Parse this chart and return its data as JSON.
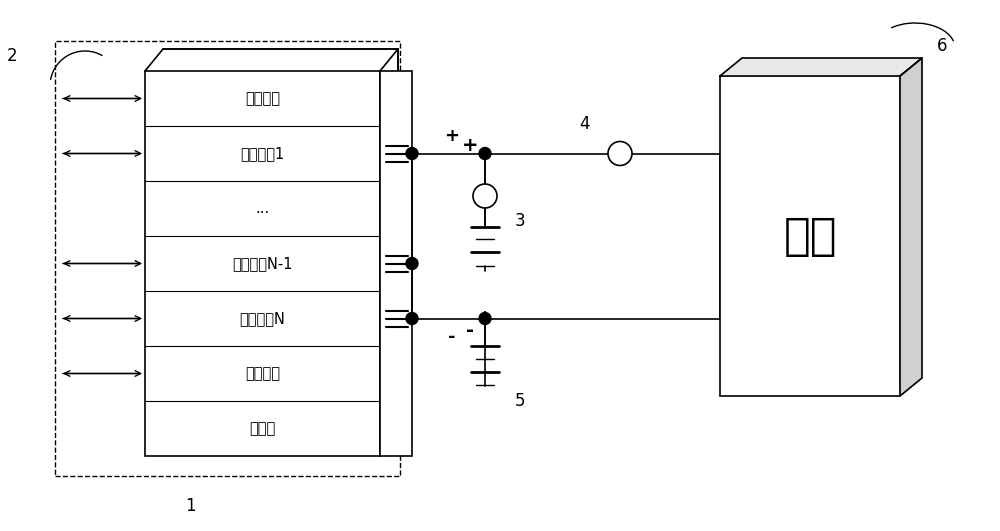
{
  "bg_color": "#ffffff",
  "line_color": "#000000",
  "fig_width": 10.0,
  "fig_height": 5.31,
  "dpi": 100,
  "module_labels": [
    "控制模块",
    "整流模块1",
    "...",
    "整流模块N-1",
    "整流模块N",
    "通信接口",
    "主控板"
  ],
  "load_label": "负载",
  "label_1": "1",
  "label_2": "2",
  "label_3": "3",
  "label_4": "4",
  "label_5": "5",
  "label_6": "6",
  "plus_label": "+",
  "minus_label": "-"
}
